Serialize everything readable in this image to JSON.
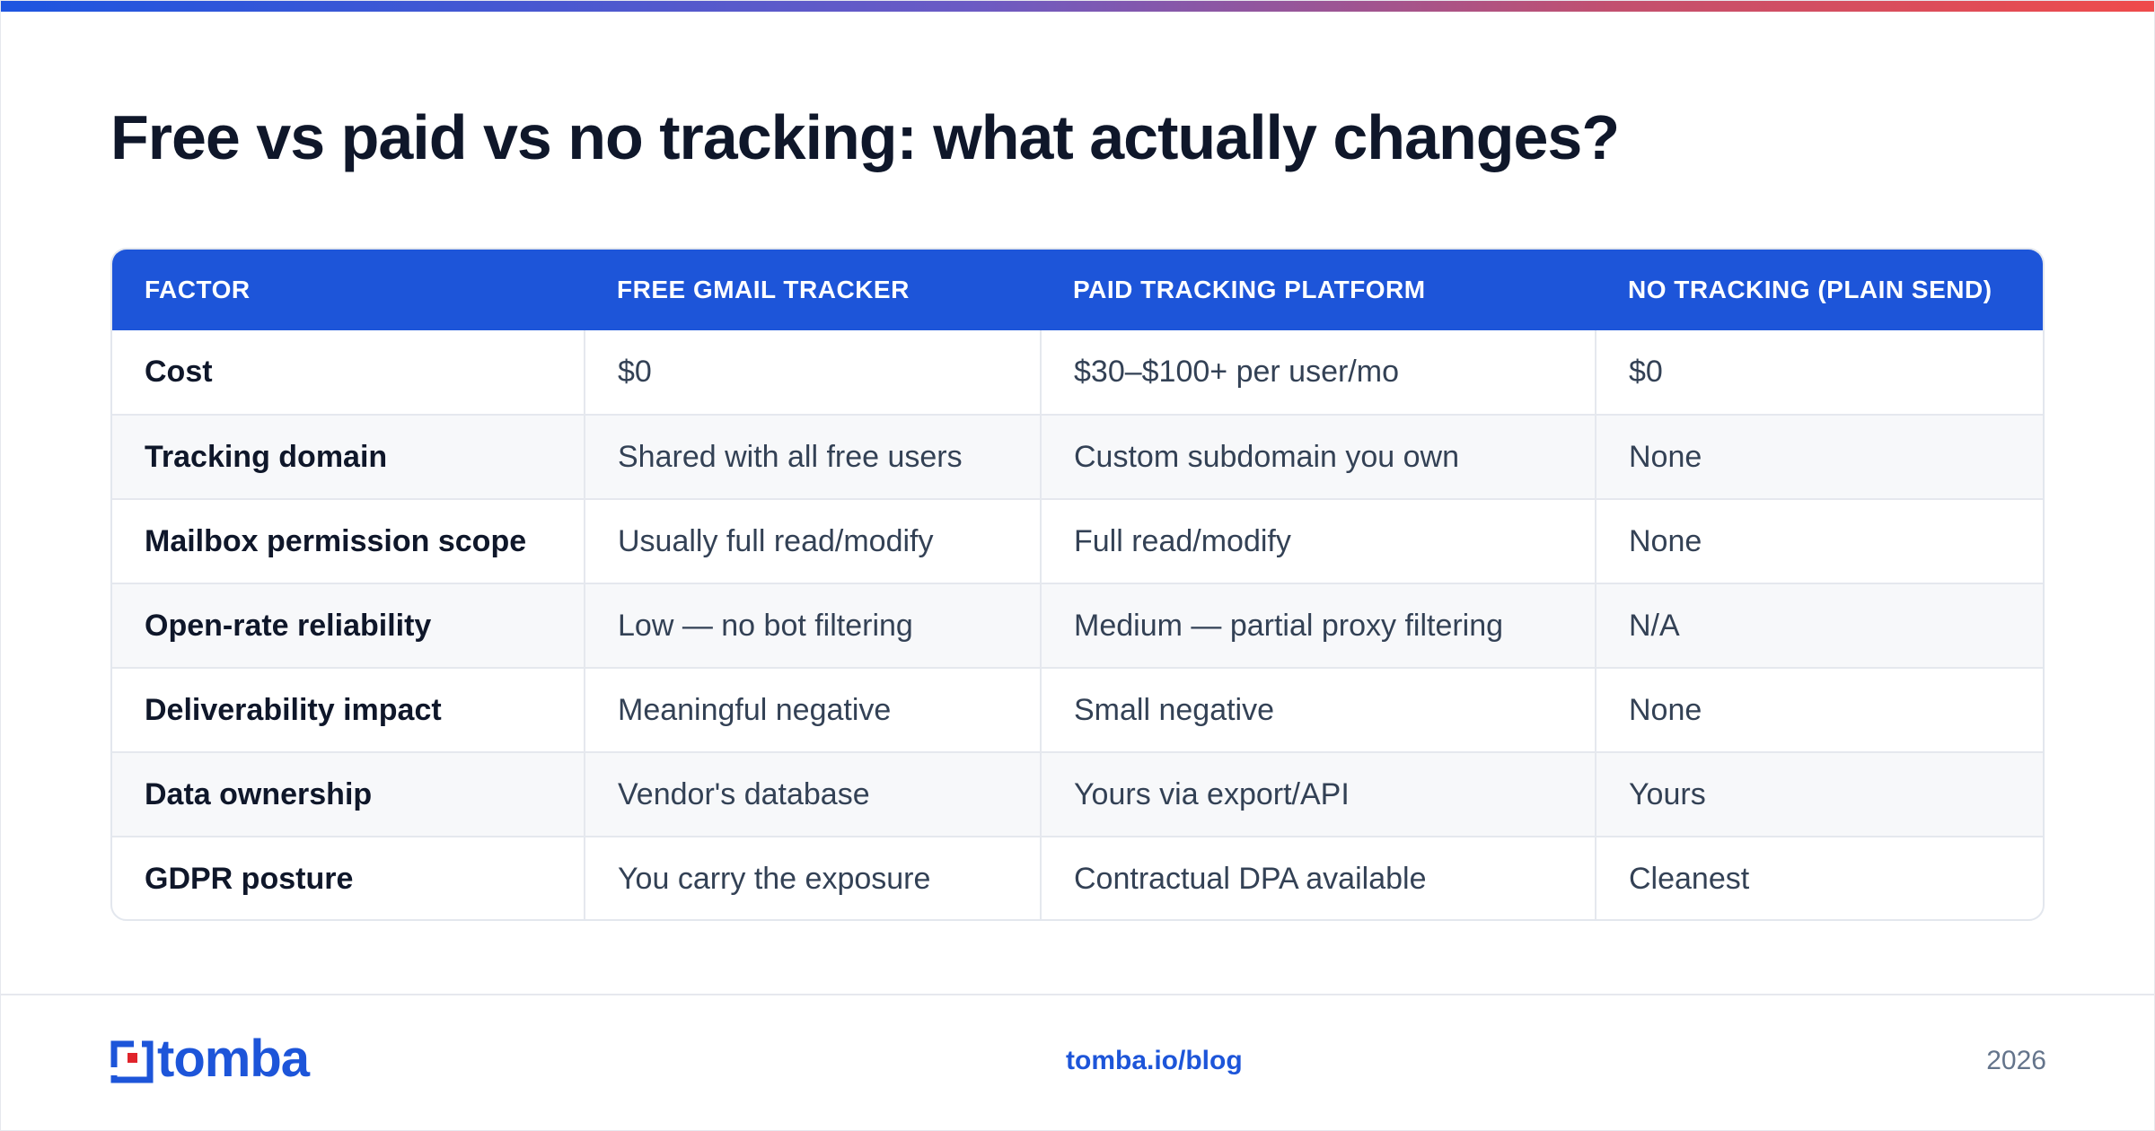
{
  "title": "Free vs paid vs no tracking: what actually changes?",
  "table": {
    "headers": [
      "FACTOR",
      "FREE GMAIL TRACKER",
      "PAID TRACKING PLATFORM",
      "NO TRACKING (PLAIN SEND)"
    ],
    "rows": [
      [
        "Cost",
        "$0",
        "$30–$100+ per user/mo",
        "$0"
      ],
      [
        "Tracking domain",
        "Shared with all free users",
        "Custom subdomain you own",
        "None"
      ],
      [
        "Mailbox permission scope",
        "Usually full read/modify",
        "Full read/modify",
        "None"
      ],
      [
        "Open-rate reliability",
        "Low — no bot filtering",
        "Medium — partial proxy filtering",
        "N/A"
      ],
      [
        "Deliverability impact",
        "Meaningful negative",
        "Small negative",
        "None"
      ],
      [
        "Data ownership",
        "Vendor's database",
        "Yours via export/API",
        "Yours"
      ],
      [
        "GDPR posture",
        "You carry the exposure",
        "Contractual DPA available",
        "Cleanest"
      ]
    ]
  },
  "footer": {
    "logo_text": "tomba",
    "link": "tomba.io/blog",
    "year": "2026"
  },
  "colors": {
    "accent": "#1d55d9",
    "logo_red": "#e0242b",
    "title": "#0f172a",
    "body_text": "#334155"
  }
}
